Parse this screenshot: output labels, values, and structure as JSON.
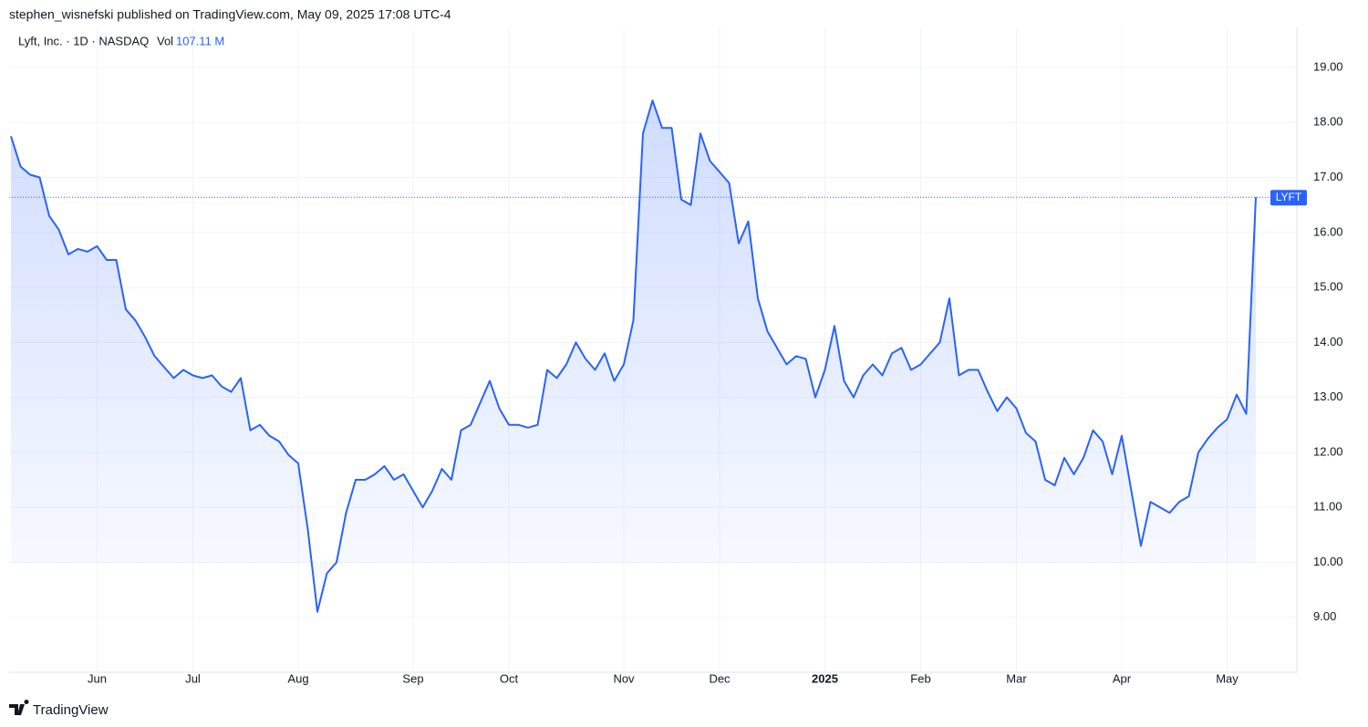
{
  "header": {
    "published": "stephen_wisnefski published on TradingView.com, May 09, 2025 17:08 UTC-4",
    "legend": "Lyft, Inc. · 1D · NASDAQ",
    "volume_label": "Vol",
    "volume": "107.11 M"
  },
  "footer": {
    "brand": "TradingView"
  },
  "chart_data": {
    "type": "line",
    "grid": true,
    "area": true,
    "categories": [
      null,
      null,
      null,
      null,
      null,
      null,
      null,
      null,
      null,
      "Jun",
      null,
      null,
      null,
      null,
      null,
      null,
      null,
      null,
      null,
      "Jul",
      null,
      null,
      null,
      null,
      null,
      null,
      null,
      null,
      null,
      null,
      "Aug",
      null,
      null,
      null,
      null,
      null,
      null,
      null,
      null,
      null,
      null,
      null,
      "Sep",
      null,
      null,
      null,
      null,
      null,
      null,
      null,
      null,
      null,
      "Oct",
      null,
      null,
      null,
      null,
      null,
      null,
      null,
      null,
      null,
      null,
      null,
      "Nov",
      null,
      null,
      null,
      null,
      null,
      null,
      null,
      null,
      null,
      "Dec",
      null,
      null,
      null,
      null,
      null,
      null,
      null,
      null,
      null,
      null,
      "2025",
      null,
      null,
      null,
      null,
      null,
      null,
      null,
      null,
      null,
      "Feb",
      null,
      null,
      null,
      null,
      null,
      null,
      null,
      null,
      null,
      "Mar",
      null,
      null,
      null,
      null,
      null,
      null,
      null,
      null,
      null,
      null,
      "Apr",
      null,
      null,
      null,
      null,
      null,
      null,
      null,
      null,
      null,
      null,
      "May",
      null,
      null,
      null
    ],
    "series": [
      {
        "name": "LYFT",
        "color": "#2962ff",
        "values": [
          17.75,
          17.2,
          17.05,
          17.0,
          16.3,
          16.05,
          15.6,
          15.7,
          15.65,
          15.75,
          15.5,
          15.5,
          14.6,
          14.4,
          14.1,
          13.75,
          13.55,
          13.35,
          13.5,
          13.4,
          13.35,
          13.4,
          13.2,
          13.1,
          13.35,
          12.4,
          12.5,
          12.3,
          12.2,
          11.95,
          11.8,
          10.6,
          9.1,
          9.8,
          10.0,
          10.9,
          11.5,
          11.5,
          11.6,
          11.75,
          11.5,
          11.6,
          11.3,
          11.0,
          11.3,
          11.7,
          11.5,
          12.4,
          12.5,
          12.9,
          13.3,
          12.8,
          12.5,
          12.5,
          12.45,
          12.5,
          13.5,
          13.35,
          13.6,
          14.0,
          13.7,
          13.5,
          13.8,
          13.3,
          13.6,
          14.4,
          17.8,
          18.4,
          17.9,
          17.9,
          16.6,
          16.5,
          17.8,
          17.3,
          17.1,
          16.9,
          15.8,
          16.2,
          14.8,
          14.2,
          13.9,
          13.6,
          13.75,
          13.7,
          13.0,
          13.5,
          14.3,
          13.3,
          13.0,
          13.4,
          13.6,
          13.4,
          13.8,
          13.9,
          13.5,
          13.6,
          13.8,
          14.0,
          14.8,
          13.4,
          13.5,
          13.5,
          13.1,
          12.75,
          13.0,
          12.8,
          12.35,
          12.2,
          11.5,
          11.4,
          11.9,
          11.6,
          11.9,
          12.4,
          12.2,
          11.6,
          12.3,
          11.3,
          10.3,
          11.1,
          11.0,
          10.9,
          11.1,
          11.2,
          12.0,
          12.25,
          12.45,
          12.6,
          13.05,
          12.7,
          16.64
        ]
      }
    ],
    "ylim": [
      8.0,
      19.73
    ],
    "yticks": [
      {
        "value": 9,
        "label": "9.00"
      },
      {
        "value": 10,
        "label": "10.00"
      },
      {
        "value": 11,
        "label": "11.00"
      },
      {
        "value": 12,
        "label": "12.00"
      },
      {
        "value": 13,
        "label": "13.00"
      },
      {
        "value": 14,
        "label": "14.00"
      },
      {
        "value": 15,
        "label": "15.00"
      },
      {
        "value": 16,
        "label": "16.00"
      },
      {
        "value": 17,
        "label": "17.00"
      },
      {
        "value": 18,
        "label": "18.00"
      },
      {
        "value": 19,
        "label": "19.00"
      }
    ]
  }
}
